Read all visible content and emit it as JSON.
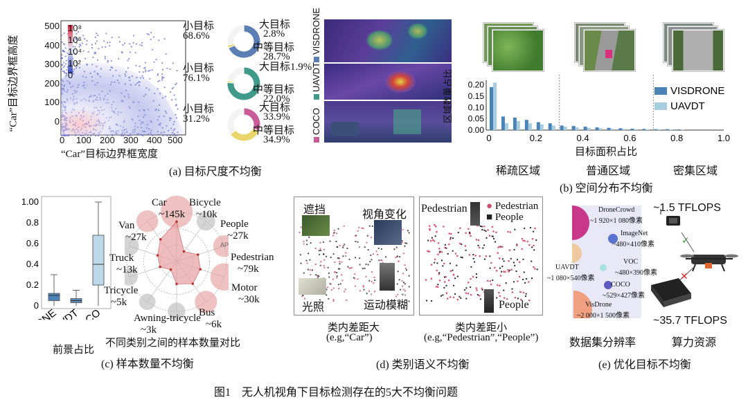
{
  "figure_caption": "图1　无人机视角下目标检测存在的5大不均衡问题",
  "panel_a": {
    "caption": "(a) 目标尺度不均衡",
    "scatter": {
      "xlabel": "“Car”目标边界框宽度",
      "ylabel": "“Car”目标边界框高度",
      "xticks": [
        "0",
        "100",
        "200",
        "300",
        "400",
        "500"
      ],
      "yticks": [
        "0",
        "100",
        "200",
        "300",
        "400",
        "500"
      ],
      "colorbar_ticks": [
        "10⁸",
        "10⁶",
        "10⁴",
        "10²",
        "0"
      ]
    },
    "donuts": [
      {
        "dataset": "VISDRONE",
        "small_label": "小目标",
        "small_pct": "68.6%",
        "large_label": "大目标",
        "large_pct": "2.8%",
        "medium_label": "中等目标",
        "medium_pct": "28.7%",
        "color": "#5b7fb5"
      },
      {
        "dataset": "UAVDT",
        "small_label": "小目标",
        "small_pct": "76.1%",
        "large_label": "大目标",
        "large_pct": "1.9%",
        "medium_label": "中等目标",
        "medium_pct": "22.0%",
        "color": "#3f9a8a"
      },
      {
        "dataset": "COCO",
        "small_label": "小目标",
        "small_pct": "31.2%",
        "large_label": "大目标",
        "large_pct": "33.9%",
        "medium_label": "中等目标",
        "medium_pct": "34.9%",
        "color": "#c95b9b"
      }
    ]
  },
  "panel_b": {
    "caption": "(b) 空间分布不均衡",
    "ylabel": "区域数量占比",
    "xlabel": "目标面积占比",
    "regions": [
      "稀疏区域",
      "普通区域",
      "密集区域"
    ],
    "legend": [
      "VISDRONE",
      "UAVDT"
    ]
  },
  "panel_c": {
    "caption": "(c) 样本数量不均衡",
    "box_xlabel": "前景占比",
    "box_categories": [
      "VISDRONE",
      "UAVDT",
      "COCO"
    ],
    "box_yticks": [
      "0",
      "0.2",
      "0.4",
      "0.6",
      "0.8",
      "1.00"
    ],
    "radar_title": "不同类别之间的样本数量对比",
    "ap_label": "AP",
    "classes": [
      {
        "name": "Car",
        "count": "~145k"
      },
      {
        "name": "Bicycle",
        "count": "~10k"
      },
      {
        "name": "People",
        "count": "~27k"
      },
      {
        "name": "Pedestrian",
        "count": "~79k"
      },
      {
        "name": "Motor",
        "count": "~30k"
      },
      {
        "name": "Bus",
        "count": "~6k"
      },
      {
        "name": "Awning-tricycle",
        "count": "~3k"
      },
      {
        "name": "Tricycle",
        "count": "~5k"
      },
      {
        "name": "Truck",
        "count": "~13k"
      },
      {
        "name": "Van",
        "count": "~27k"
      }
    ]
  },
  "panel_d": {
    "caption": "(d) 类别语义不均衡",
    "left_labels": [
      "遮挡",
      "视角变化",
      "光照",
      "运动模糊"
    ],
    "left_title": "类内差距大",
    "left_example": "(e.g,“Car”)",
    "right_title": "类内差距小",
    "right_example": "(e.g,“Pedestrian”,“People”)",
    "right_labels": {
      "pedestrian": "Pedestrian",
      "people": "People"
    },
    "legend": [
      "Pedestrian",
      "People"
    ]
  },
  "panel_e": {
    "caption": "(e) 优化目标不均衡",
    "datasets": [
      {
        "name": "DroneCrowd",
        "res": "~1 920×1 080像素"
      },
      {
        "name": "ImageNet",
        "res": "~480×410像素"
      },
      {
        "name": "UAVDT",
        "res": "~1 080×540像素"
      },
      {
        "name": "VOC",
        "res": "~480×390像素"
      },
      {
        "name": "COCO",
        "res": "~529×427像素"
      },
      {
        "name": "VisDrone",
        "res": "~2 000×1 500像素"
      }
    ],
    "flops_top": "~1.5 TFLOPS",
    "flops_bottom": "~35.7 TFLOPS",
    "label_resolution": "数据集分辨率",
    "label_compute": "算力资源"
  }
}
